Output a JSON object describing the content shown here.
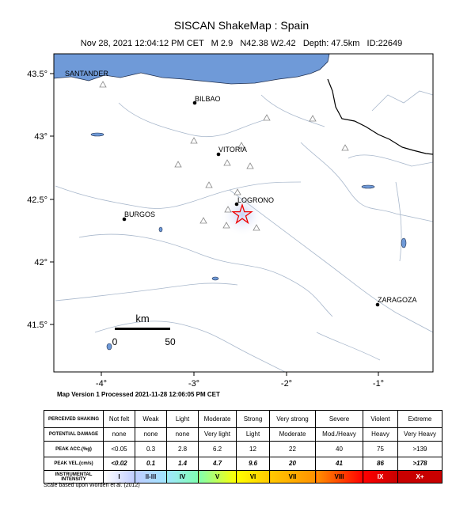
{
  "header": {
    "title": "SISCAN ShakeMap : Spain",
    "subtitle": "Nov 28, 2021 12:04:12 PM CET   M 2.9   N42.38 W2.42   Depth: 47.5km   ID:22649"
  },
  "map": {
    "lat_labels": [
      "43.5°",
      "43°",
      "42.5°",
      "42°",
      "41.5°"
    ],
    "lon_labels": [
      "-4°",
      "-3°",
      "-2°",
      "-1°"
    ],
    "cities": [
      "SANTANDER",
      "BILBAO",
      "VITORIA",
      "LOGRONO",
      "BURGOS",
      "ZARAGOZA"
    ],
    "scale": {
      "unit": "km",
      "start": "0",
      "end": "50"
    },
    "version": "Map Version 1 Processed 2021-11-28 12:06:05 PM CET"
  },
  "legend": {
    "rows": [
      [
        "PERCEIVED SHAKING",
        "Not felt",
        "Weak",
        "Light",
        "Moderate",
        "Strong",
        "Very strong",
        "Severe",
        "Violent",
        "Extreme"
      ],
      [
        "POTENTIAL DAMAGE",
        "none",
        "none",
        "none",
        "Very light",
        "Light",
        "Moderate",
        "Mod./Heavy",
        "Heavy",
        "Very Heavy"
      ],
      [
        "PEAK ACC.(%g)",
        "<0.05",
        "0.3",
        "2.8",
        "6.2",
        "12",
        "22",
        "40",
        "75",
        ">139"
      ],
      [
        "PEAK VEL.(cm/s)",
        "<0.02",
        "0.1",
        "1.4",
        "4.7",
        "9.6",
        "20",
        "41",
        "86",
        ">178"
      ],
      [
        "INSTRUMENTAL INTENSITY",
        "I",
        "II-III",
        "IV",
        "V",
        "VI",
        "VII",
        "VIII",
        "IX",
        "X+"
      ]
    ],
    "colors": [
      "#ffffff",
      "#bfccff",
      "#a0e6ff",
      "#80ffb0",
      "#ffff00",
      "#ffc800",
      "#ff9100",
      "#ff0000",
      "#c80000"
    ]
  },
  "footnote": "Scale based upon Worden et al. (2012)"
}
